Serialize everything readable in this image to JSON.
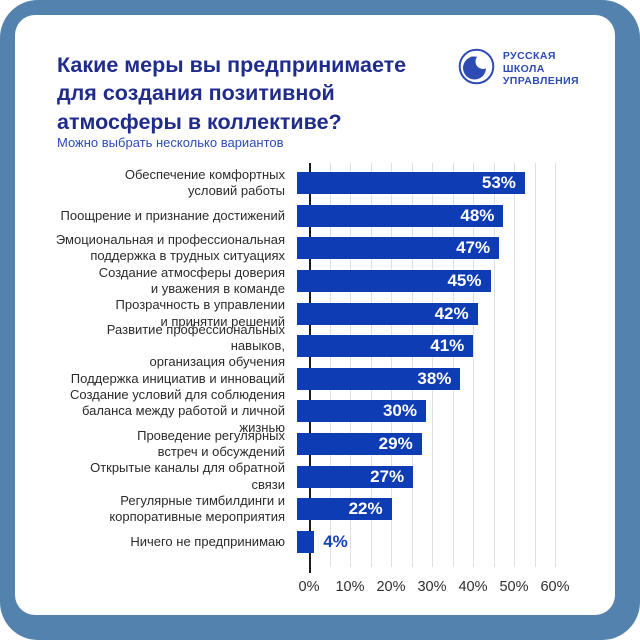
{
  "frame": {
    "border_color": "#5282ad",
    "card_color": "#ffffff"
  },
  "header": {
    "title_lines": [
      "Какие меры вы предпринимаете",
      "для создания позитивной",
      "атмосферы в коллективе?"
    ],
    "subtitle": "Можно выбрать несколько вариантов"
  },
  "logo": {
    "icon": "globe-icon",
    "lines": [
      "РУССКАЯ",
      "ШКОЛА",
      "УПРАВЛЕНИЯ"
    ],
    "color": "#2c4cb4"
  },
  "chart_data": {
    "type": "bar",
    "orientation": "horizontal",
    "title": "Какие меры вы предпринимаете для создания позитивной атмосферы в коллективе?",
    "subtitle": "Можно выбрать несколько вариантов",
    "categories": [
      "Обеспечение комфортных условий работы",
      "Поощрение и признание достижений",
      "Эмоциональная и профессиональная поддержка в трудных ситуациях",
      "Создание атмосферы доверия и уважения в команде",
      "Прозрачность в управлении и принятии решений",
      "Развитие профессиональных навыков, организация обучения",
      "Поддержка инициатив и инноваций",
      "Создание условий для соблюдения баланса между работой и личной жизнью",
      "Проведение регулярных встреч и обсуждений",
      "Открытые каналы для обратной связи",
      "Регулярные тимбилдинги и корпоративные мероприятия",
      "Ничего не предпринимаю"
    ],
    "category_lines": [
      [
        "Обеспечение комфортных",
        "условий работы"
      ],
      [
        "Поощрение и признание достижений"
      ],
      [
        "Эмоциональная и профессиональная",
        "поддержка в трудных ситуациях"
      ],
      [
        "Создание атмосферы доверия",
        "и уважения в команде"
      ],
      [
        "Прозрачность в управлении",
        "и принятии решений"
      ],
      [
        "Развитие профессиональных навыков,",
        "организация обучения"
      ],
      [
        "Поддержка инициатив и инноваций"
      ],
      [
        "Создание условий для соблюдения",
        "баланса между работой и личной жизнью"
      ],
      [
        "Проведение регулярных",
        "встреч и обсуждений"
      ],
      [
        "Открытые каналы для обратной связи"
      ],
      [
        "Регулярные тимбилдинги и",
        "корпоративные мероприятия"
      ],
      [
        "Ничего не предпринимаю"
      ]
    ],
    "values": [
      53,
      48,
      47,
      45,
      42,
      41,
      38,
      30,
      29,
      27,
      22,
      4
    ],
    "value_labels": [
      "53%",
      "48%",
      "47%",
      "45%",
      "42%",
      "41%",
      "38%",
      "30%",
      "29%",
      "27%",
      "22%",
      "4%"
    ],
    "xlim": [
      0,
      60
    ],
    "x_ticks": [
      "0%",
      "10%",
      "20%",
      "30%",
      "40%",
      "50%",
      "60%"
    ],
    "x_tick_step": 10,
    "grid_step": 5,
    "grid_on": true,
    "legend": "none",
    "bar_color": "#0d3cb5",
    "value_label_color_inside": "#ffffff",
    "value_label_color_outside": "#1443c0"
  }
}
